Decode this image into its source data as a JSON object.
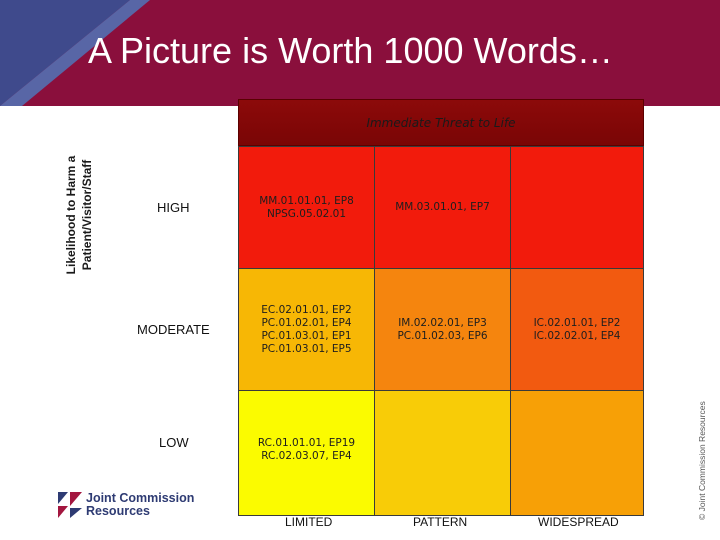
{
  "slide": {
    "title": "A Picture is Worth 1000 Words…"
  },
  "matrix": {
    "column_header": "Immediate Threat to Life",
    "y_axis_label_lines": [
      "Likelihood to Harm a",
      "Patient/Visitor/Staff"
    ],
    "rows": [
      {
        "label": "HIGH",
        "cells": [
          {
            "lines": [
              "MM.01.01.01, EP8",
              "NPSG.05.02.01"
            ],
            "color": "#f21b0c"
          },
          {
            "lines": [
              "MM.03.01.01, EP7"
            ],
            "color": "#f21b0c"
          },
          {
            "lines": [],
            "color": "#f21b0c"
          }
        ]
      },
      {
        "label": "MODERATE",
        "cells": [
          {
            "lines": [
              "EC.02.01.01, EP2",
              "PC.01.02.01, EP4",
              "PC.01.03.01, EP1",
              "PC.01.03.01, EP5"
            ],
            "color": "#f7b705"
          },
          {
            "lines": [
              "IM.02.02.01, EP3",
              "PC.01.02.03, EP6"
            ],
            "color": "#f5850e"
          },
          {
            "lines": [
              "IC.02.01.01, EP2",
              "IC.02.02.01, EP4"
            ],
            "color": "#f25a10"
          }
        ]
      },
      {
        "label": "LOW",
        "cells": [
          {
            "lines": [
              "RC.01.01.01, EP19",
              "RC.02.03.07, EP4"
            ],
            "color": "#fbfb00"
          },
          {
            "lines": [],
            "color": "#f8cc07"
          },
          {
            "lines": [],
            "color": "#f7a006"
          }
        ]
      }
    ],
    "columns": [
      "LIMITED",
      "PATTERN",
      "WIDESPREAD"
    ]
  },
  "branding": {
    "logo_line1": "Joint Commission",
    "logo_line2": "Resources",
    "copyright": "© Joint Commission Resources"
  },
  "colors": {
    "header_bar": "#8a0f3c",
    "header_corner_blue": "#3f4a8c",
    "threat_header": "#8c0a0a"
  }
}
